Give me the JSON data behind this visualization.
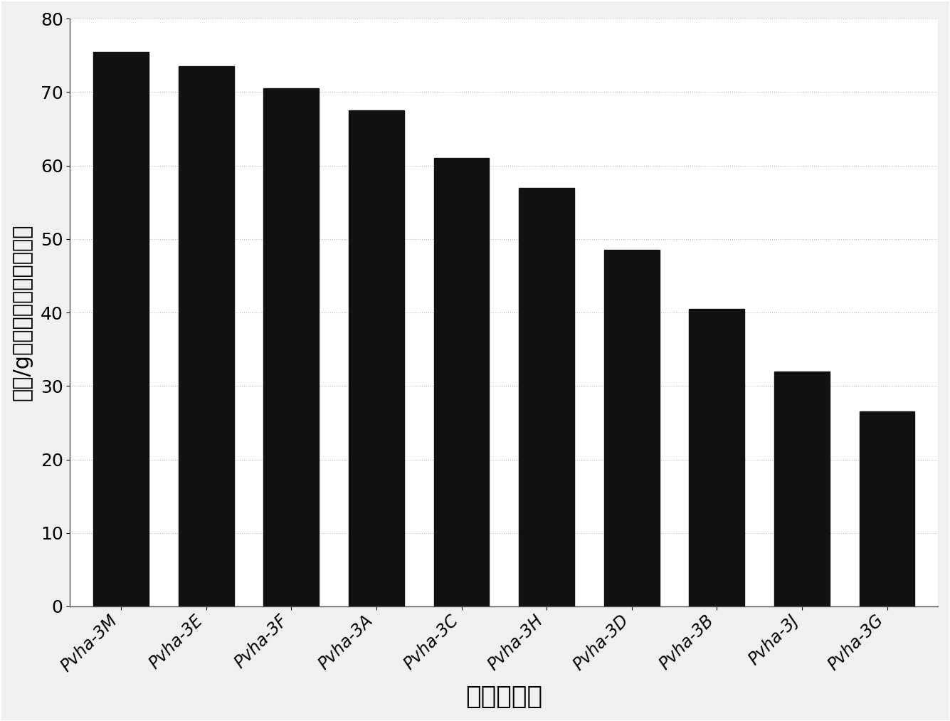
{
  "categories": [
    "Pvha-3M",
    "Pvha-3E",
    "Pvha-3F",
    "Pvha-3A",
    "Pvha-3C",
    "Pvha-3H",
    "Pvha-3D",
    "Pvha-3B",
    "Pvha-3J",
    "Pvha-3G"
  ],
  "values": [
    75.5,
    73.5,
    70.5,
    67.5,
    61.0,
    57.0,
    48.5,
    40.5,
    32.0,
    26.5
  ],
  "bar_color": "#111111",
  "ylabel": "孢囊/g干根重量的百分比降低",
  "xlabel": "转基因事件",
  "ylim": [
    0,
    80
  ],
  "yticks": [
    0,
    10,
    20,
    30,
    40,
    50,
    60,
    70,
    80
  ],
  "background_color": "#f0f0f0",
  "plot_bg_color": "#ffffff",
  "bar_width": 0.65,
  "ylabel_fontsize": 22,
  "xlabel_fontsize": 26,
  "tick_fontsize": 18,
  "xtick_fontsize": 17
}
